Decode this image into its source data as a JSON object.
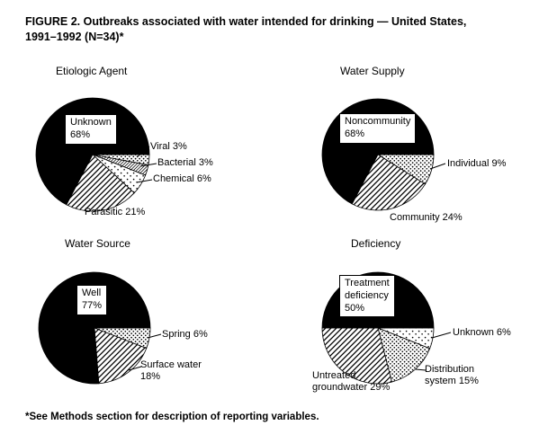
{
  "figure": {
    "title_line1": "FIGURE 2. Outbreaks associated with water intended for drinking — United States,",
    "title_line2": "1991–1992 (N=34)*",
    "footnote": "*See Methods section for description of reporting variables."
  },
  "chart_data": [
    {
      "type": "pie",
      "title": "Etiologic Agent",
      "slices": [
        {
          "name": "Viral",
          "value": 3,
          "pattern": "dots",
          "label": "Viral 3%"
        },
        {
          "name": "Bacterial",
          "value": 3,
          "pattern": "hatch-fine",
          "label": "Bacterial 3%"
        },
        {
          "name": "Chemical",
          "value": 6,
          "pattern": "dots-sparse",
          "label": "Chemical 6%"
        },
        {
          "name": "Parasitic",
          "value": 21,
          "pattern": "hatch",
          "label": "Parasitic 21%"
        },
        {
          "name": "Unknown",
          "value": 68,
          "pattern": "black",
          "label": "Unknown\n68%"
        }
      ]
    },
    {
      "type": "pie",
      "title": "Water Supply",
      "slices": [
        {
          "name": "Individual",
          "value": 9,
          "pattern": "dots",
          "label": "Individual 9%"
        },
        {
          "name": "Community",
          "value": 24,
          "pattern": "hatch",
          "label": "Community 24%"
        },
        {
          "name": "Noncommunity",
          "value": 68,
          "pattern": "black",
          "label": "Noncommunity\n68%"
        }
      ]
    },
    {
      "type": "pie",
      "title": "Water Source",
      "slices": [
        {
          "name": "Spring",
          "value": 6,
          "pattern": "dots",
          "label": "Spring 6%"
        },
        {
          "name": "Surface water",
          "value": 18,
          "pattern": "hatch",
          "label": "Surface water\n18%"
        },
        {
          "name": "Well",
          "value": 77,
          "pattern": "black",
          "label": "Well\n77%"
        }
      ]
    },
    {
      "type": "pie",
      "title": "Deficiency",
      "slices": [
        {
          "name": "Unknown",
          "value": 6,
          "pattern": "dots-sparse",
          "label": "Unknown 6%"
        },
        {
          "name": "Distribution system",
          "value": 15,
          "pattern": "dots",
          "label": "Distribution\nsystem 15%"
        },
        {
          "name": "Untreated groundwater",
          "value": 29,
          "pattern": "hatch",
          "label": "Untreated\ngroundwater 29%"
        },
        {
          "name": "Treatment deficiency",
          "value": 50,
          "pattern": "black",
          "label": "Treatment\ndeficiency\n50%"
        }
      ]
    }
  ],
  "colors": {
    "ink": "#000000",
    "paper": "#ffffff"
  }
}
